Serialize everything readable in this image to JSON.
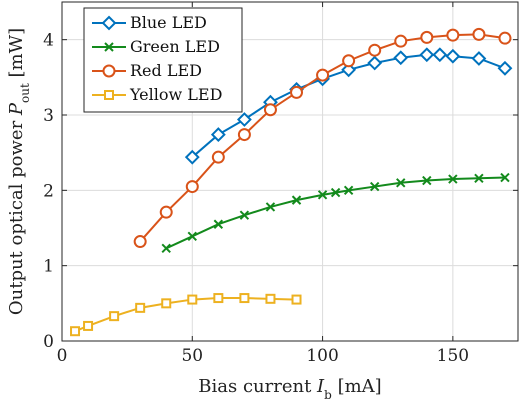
{
  "chart_data": {
    "type": "line",
    "title": "",
    "xlabel": "Bias current I_b [mA]",
    "xlabel_main": "Bias current ",
    "xlabel_symbol": "I",
    "xlabel_sub": "b",
    "xlabel_unit": " [mA]",
    "ylabel": "Output optical power P_out [mW]",
    "ylabel_main": "Output optical power ",
    "ylabel_symbol": "P",
    "ylabel_sub": "out",
    "ylabel_unit": " [mW]",
    "xlim": [
      0,
      175
    ],
    "ylim": [
      0,
      4.5
    ],
    "xticks": [
      0,
      50,
      100,
      150
    ],
    "yticks": [
      0,
      1,
      2,
      3,
      4
    ],
    "grid": true,
    "legend_position": "top-left",
    "series": [
      {
        "name": "Blue LED",
        "color": "#0072bd",
        "marker": "diamond",
        "x": [
          50,
          60,
          70,
          80,
          90,
          100,
          110,
          120,
          130,
          140,
          145,
          150,
          160,
          170
        ],
        "y": [
          2.44,
          2.74,
          2.94,
          3.17,
          3.34,
          3.48,
          3.6,
          3.69,
          3.76,
          3.8,
          3.8,
          3.78,
          3.75,
          3.62
        ]
      },
      {
        "name": "Green LED",
        "color": "#138a1c",
        "marker": "x",
        "x": [
          40,
          50,
          60,
          70,
          80,
          90,
          100,
          105,
          110,
          120,
          130,
          140,
          150,
          160,
          170
        ],
        "y": [
          1.23,
          1.39,
          1.55,
          1.67,
          1.78,
          1.87,
          1.94,
          1.97,
          2.0,
          2.05,
          2.1,
          2.13,
          2.15,
          2.16,
          2.17
        ]
      },
      {
        "name": "Red LED",
        "color": "#d95319",
        "marker": "circle",
        "x": [
          30,
          40,
          50,
          60,
          70,
          80,
          90,
          100,
          110,
          120,
          130,
          140,
          150,
          160,
          170
        ],
        "y": [
          1.32,
          1.71,
          2.05,
          2.44,
          2.74,
          3.07,
          3.3,
          3.53,
          3.72,
          3.86,
          3.98,
          4.03,
          4.06,
          4.07,
          4.02
        ]
      },
      {
        "name": "Yellow LED",
        "color": "#edb120",
        "marker": "square",
        "x": [
          5,
          10,
          20,
          30,
          40,
          50,
          60,
          70,
          80,
          90
        ],
        "y": [
          0.13,
          0.2,
          0.33,
          0.44,
          0.5,
          0.55,
          0.57,
          0.57,
          0.56,
          0.55
        ]
      }
    ]
  }
}
